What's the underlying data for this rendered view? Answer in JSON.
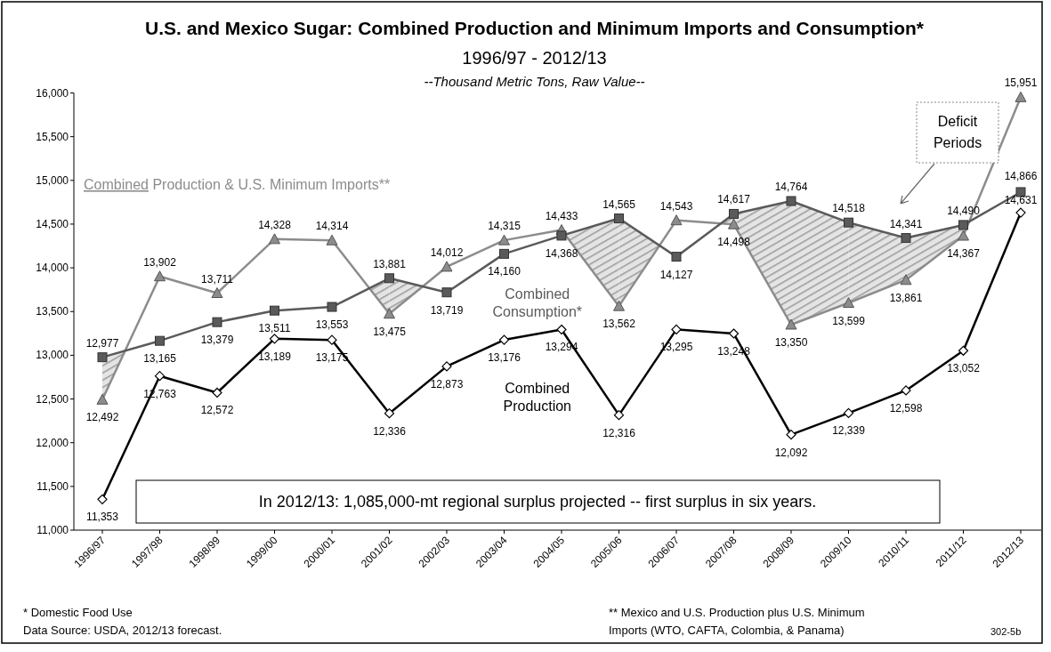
{
  "chart_data": {
    "type": "line",
    "title": "U.S. and Mexico Sugar: Combined Production and Minimum Imports and Consumption*",
    "subtitle": "1996/97 - 2012/13",
    "categories": [
      "1996/97",
      "1997/98",
      "1998/99",
      "1999/00",
      "2000/01",
      "2001/02",
      "2002/03",
      "2003/04",
      "2004/05",
      "2005/06",
      "2006/07",
      "2007/08",
      "2008/09",
      "2009/10",
      "2010/11",
      "2011/12",
      "2012/13"
    ],
    "series": [
      {
        "name": "Combined Production & U.S. Minimum Imports**",
        "color": "#8c8c8c",
        "marker": "triangle",
        "values": [
          12492,
          13902,
          13711,
          14328,
          14314,
          13475,
          14012,
          14315,
          14433,
          13562,
          14543,
          14498,
          13350,
          13599,
          13861,
          14367,
          15951
        ],
        "value_labels": [
          "12,492",
          "13,902",
          "13,711",
          "14,328",
          "14,314",
          "13,475",
          "14,012",
          "14,315",
          "14,433",
          "13,562",
          "14,543",
          "14,498",
          "13,350",
          "13,599",
          "13,861",
          "14,367",
          "15,951"
        ]
      },
      {
        "name": "Combined Consumption*",
        "color": "#5a5a5a",
        "marker": "square",
        "values": [
          12977,
          13165,
          13379,
          13511,
          13553,
          13881,
          13719,
          14160,
          14368,
          14565,
          14127,
          14617,
          14764,
          14518,
          14341,
          14490,
          14866
        ],
        "value_labels": [
          "12,977",
          "13,165",
          "13,379",
          "13,511",
          "13,553",
          "13,881",
          "13,719",
          "14,160",
          "14,368",
          "14,565",
          "14,127",
          "14,617",
          "14,764",
          "14,518",
          "14,341",
          "14,490",
          "14,866"
        ]
      },
      {
        "name": "Combined Production",
        "color": "#000000",
        "marker": "diamond",
        "values": [
          11353,
          12763,
          12572,
          13189,
          13175,
          12336,
          12873,
          13176,
          13294,
          12316,
          13295,
          13248,
          12092,
          12339,
          12598,
          13052,
          14631
        ],
        "value_labels": [
          "11,353",
          "12,763",
          "12,572",
          "13,189",
          "13,175",
          "12,336",
          "12,873",
          "13,176",
          "13,294",
          "12,316",
          "13,295",
          "13,248",
          "12,092",
          "12,339",
          "12,598",
          "13,052",
          "14,631"
        ]
      }
    ],
    "ylim": [
      11000,
      16000
    ],
    "yticks": [
      {
        "value": 11000,
        "label": "11,000"
      },
      {
        "value": 11500,
        "label": "11,500"
      },
      {
        "value": 12000,
        "label": "12,000"
      },
      {
        "value": 12500,
        "label": "12,500"
      },
      {
        "value": 13000,
        "label": "13,000"
      },
      {
        "value": 13500,
        "label": "13,500"
      },
      {
        "value": 14000,
        "label": "14,000"
      },
      {
        "value": 14500,
        "label": "14,500"
      },
      {
        "value": 15000,
        "label": "15,000"
      },
      {
        "value": 15500,
        "label": "15,500"
      },
      {
        "value": 16000,
        "label": "16,000"
      }
    ],
    "grid": false,
    "legend": false,
    "line_style": "solid",
    "annotations": [
      "--Thousand Metric Tons, Raw Value--",
      "Deficit Periods",
      "In 2012/13: 1,085,000-mt regional surplus projected -- first surplus in six years.",
      "* Domestic Food Use",
      "Data Source: USDA, 2012/13  forecast.",
      "** Mexico and U.S. Production plus U.S. Minimum Imports (WTO, CAFTA, Colombia, & Panama)",
      "302-5b"
    ]
  }
}
